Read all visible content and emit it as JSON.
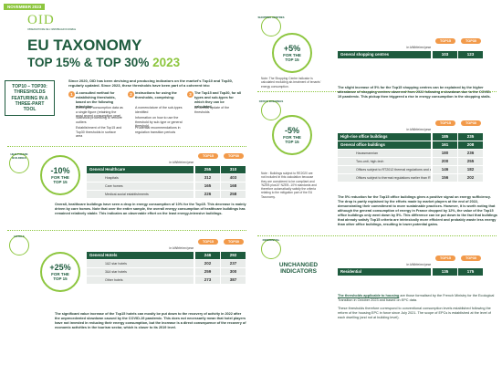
{
  "header": {
    "date": "NOVEMBER 2023",
    "logo": "OID",
    "logo_sub": "OBSERVATOIRE DE L'IMMOBILIER DURABLE",
    "title": "EU TAXONOMY",
    "subtitle": "TOP 15% & TOP 30%",
    "year": "2023"
  },
  "intro": {
    "box": "TOP10 – TOP30: THRESHOLDS FEATURING IN A THREE-PART TOOL",
    "text": "Since 2020, OID has been devising and producing indicators on the market's Top10 and Top30, regularly updated. Since 2023, these thresholds have been part of a coherent trio:",
    "points": [
      {
        "number": "1",
        "title": "A consulted method for establishing thresholds, based on the following principles:",
        "bullets": [
          "Three-year consumption data as a single figure (retaining the most recent consumption year)",
          "Statistical processing to remove outliers",
          "Establishment of the Top15 and Top30 thresholds in surface area"
        ]
      },
      {
        "number": "2",
        "title": "Instructions for using the thresholds, comprising:",
        "bullets": [
          "A nomenclature of the sub-types identified",
          "Information on how to use the threshold by sub-type or general threshold",
          "Prudential recommendations in regulation transition periods"
        ]
      },
      {
        "number": "3",
        "title": "The Top15 and Top30, for all types and sub-types for which they can be calculated.",
        "bullets": [
          "An annual update of the thresholds"
        ]
      }
    ]
  },
  "column_headers": [
    "TOP15",
    "TOP30"
  ],
  "unit": "in kWhfe/m²/year",
  "sections": [
    {
      "icon": "HEALTHCARE BUILDINGS",
      "badge": "-10%",
      "badge_text": "FOR THE TOP 15",
      "rows": [
        {
          "label": "General Healthcare",
          "top15": "255",
          "top30": "310",
          "main": true
        },
        {
          "label": "Hospitals",
          "top15": "312",
          "top30": "403",
          "main": false
        },
        {
          "label": "Care homes",
          "top15": "165",
          "top30": "168",
          "main": false
        },
        {
          "label": "Medical-social establishments",
          "top15": "226",
          "top30": "258",
          "main": false
        }
      ],
      "text": "Overall, healthcare buildings have seen a drop in energy consumption of 10% for the Top15. This decrease is mainly driven by care homes. Note that over the entire sample, the overall energy consumption of healthcare buildings has remained relatively stable. This indicates an observable effort on the least energy-intensive buildings."
    },
    {
      "icon": "HOTELS",
      "badge": "+25%",
      "badge_text": "FOR THE TOP 15",
      "rows": [
        {
          "label": "General Hotels",
          "top15": "246",
          "top30": "292",
          "main": true
        },
        {
          "label": "1&2 star hotels",
          "top15": "202",
          "top30": "237",
          "main": false
        },
        {
          "label": "3&4 star hotels",
          "top15": "259",
          "top30": "300",
          "main": false
        },
        {
          "label": "Other hotels",
          "top15": "273",
          "top30": "387",
          "main": false
        }
      ],
      "text": "The significant value increase of the Top15 hotels can mostly be put down to the recovery of activity in 2022 after the unprecedented slowdown caused by the COVID-19 pandemic. This does not necessarily mean that hotel players have not invested in reducing their energy consumption, but the increase is a direct consequence of the recovery of economic activities in the tourism sector, which is closer to its 2019 level."
    },
    {
      "icon": "SHOPPING CENTRES",
      "badge": "+5%",
      "badge_text": "FOR THE TOP 15",
      "rows": [
        {
          "label": "General shopping centres",
          "top15": "103",
          "top30": "123",
          "main": true
        }
      ],
      "note": "Note: The Shopping Centre indicator is calculated excluding air-treatment of tenants' energy consumption.",
      "text": "The slight increase of 5% for the Top15 shopping centres can be explained by the higher attendance of shopping centres observed from 2022 following a slowdown due to the COVID-19 pandemic. This pickup then triggered a rise in energy consumption in the shopping stalls."
    },
    {
      "icon": "OFFICE BUILDINGS",
      "badge": "-5%",
      "badge_text": "FOR THE TOP 15",
      "rows": [
        {
          "label": "High-rise office buildings",
          "top15": "185",
          "top30": "235",
          "main": true
        },
        {
          "label": "General office buildings",
          "top15": "161",
          "top30": "208",
          "main": true
        },
        {
          "label": "Haussmannian",
          "top15": "180",
          "top30": "236",
          "main": false
        },
        {
          "label": "Two-unit, high-tech",
          "top15": "200",
          "top30": "255",
          "main": false
        },
        {
          "label": "Offices subject to RT2012 thermal regulations and above",
          "top15": "146",
          "top30": "182",
          "main": false
        },
        {
          "label": "Offices subject to thermal regulations earlier than RT2012",
          "top15": "156",
          "top30": "202",
          "main": false
        }
      ],
      "note": "Note : Buildings subject to RE2020 are not included in this calculation because they are considered to be compliant and 'NZEB plus10' NZEB -10% standards and therefore automatically satisfy the criteria relating to the mitigation part of the EU Taxonomy.",
      "text": "The 5% reduction for the Top15 office buildings gives a positive signal on energy sufficiency. The drop is partly explained by the efforts made by market players at the end of 2022, demonstrating their commitment to more sustainable practices. However, it is worth noting that although the general consumption of energy in France dropped by 12%, the value of the Top15 office buildings only went down by 5%. This difference can be put down to the fact that buildings that already satisfy Top15 criteria are intrinsically more efficient and probably waste less energy than other office buildings, resulting in lower potential gains."
    },
    {
      "icon": "RESIDENTIAL",
      "badge": "UNCHANGED INDICATORS",
      "rows": [
        {
          "label": "Residential",
          "top15": "135",
          "top30": "175",
          "main": true
        }
      ]
    }
  ],
  "footer": {
    "link": "The thresholds applicable to housing",
    "text": " are those formalised by the French Ministry for the Ecological Transition in October 2023 and based on EPC data.",
    "text2": "These thresholds therefore correspond to conventional consumption levels established following the reform of the housing EPC in force since July 2021. The scope of EPCs is established at the level of each dwelling (and not at building level)."
  }
}
